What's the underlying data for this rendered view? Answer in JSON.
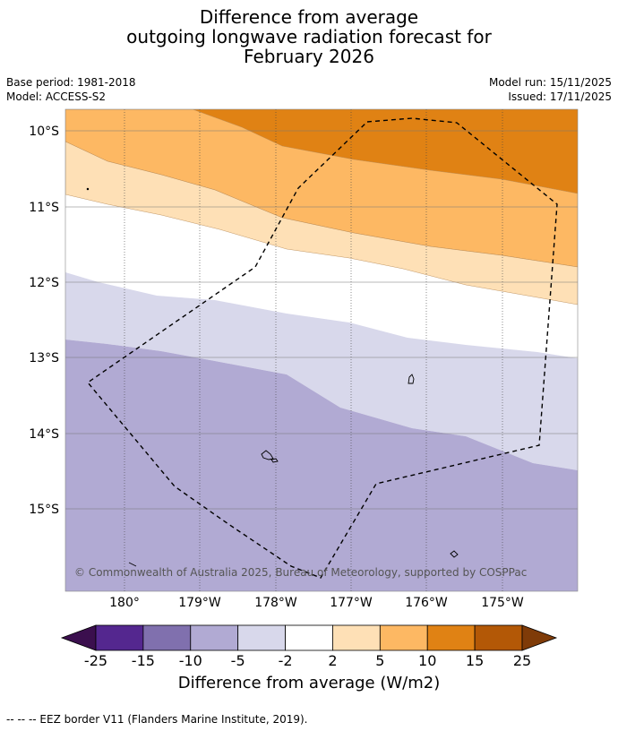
{
  "title": {
    "line1": "Difference from average",
    "line2": "outgoing longwave radiation forecast for",
    "line3": "February 2026"
  },
  "meta": {
    "base_period": "Base period: 1981-2018",
    "model": "Model: ACCESS-S2",
    "model_run": "Model run: 15/11/2025",
    "issued": "Issued: 17/11/2025"
  },
  "map": {
    "lat_labels": [
      "10°S",
      "11°S",
      "12°S",
      "13°S",
      "14°S",
      "15°S"
    ],
    "lon_labels": [
      "180°",
      "179°W",
      "178°W",
      "177°W",
      "176°W",
      "175°W"
    ],
    "copyright": "© Commonwealth of Australia 2025, Bureau of Meteorology, supported by COSPPac"
  },
  "colorbar": {
    "ticks": [
      "-25",
      "-15",
      "-10",
      "-5",
      "-2",
      "2",
      "5",
      "10",
      "15",
      "25"
    ],
    "colors": [
      "#3b0f4e",
      "#54278f",
      "#8070ae",
      "#b1aad3",
      "#d8d8eb",
      "#ffffff",
      "#fee0b6",
      "#fdb863",
      "#e08214",
      "#b35806",
      "#7f3b08"
    ],
    "label": "Difference from average (W/m2)"
  },
  "footnote": "--  --  -- EEZ border V11 (Flanders Marine Institute, 2019)."
}
